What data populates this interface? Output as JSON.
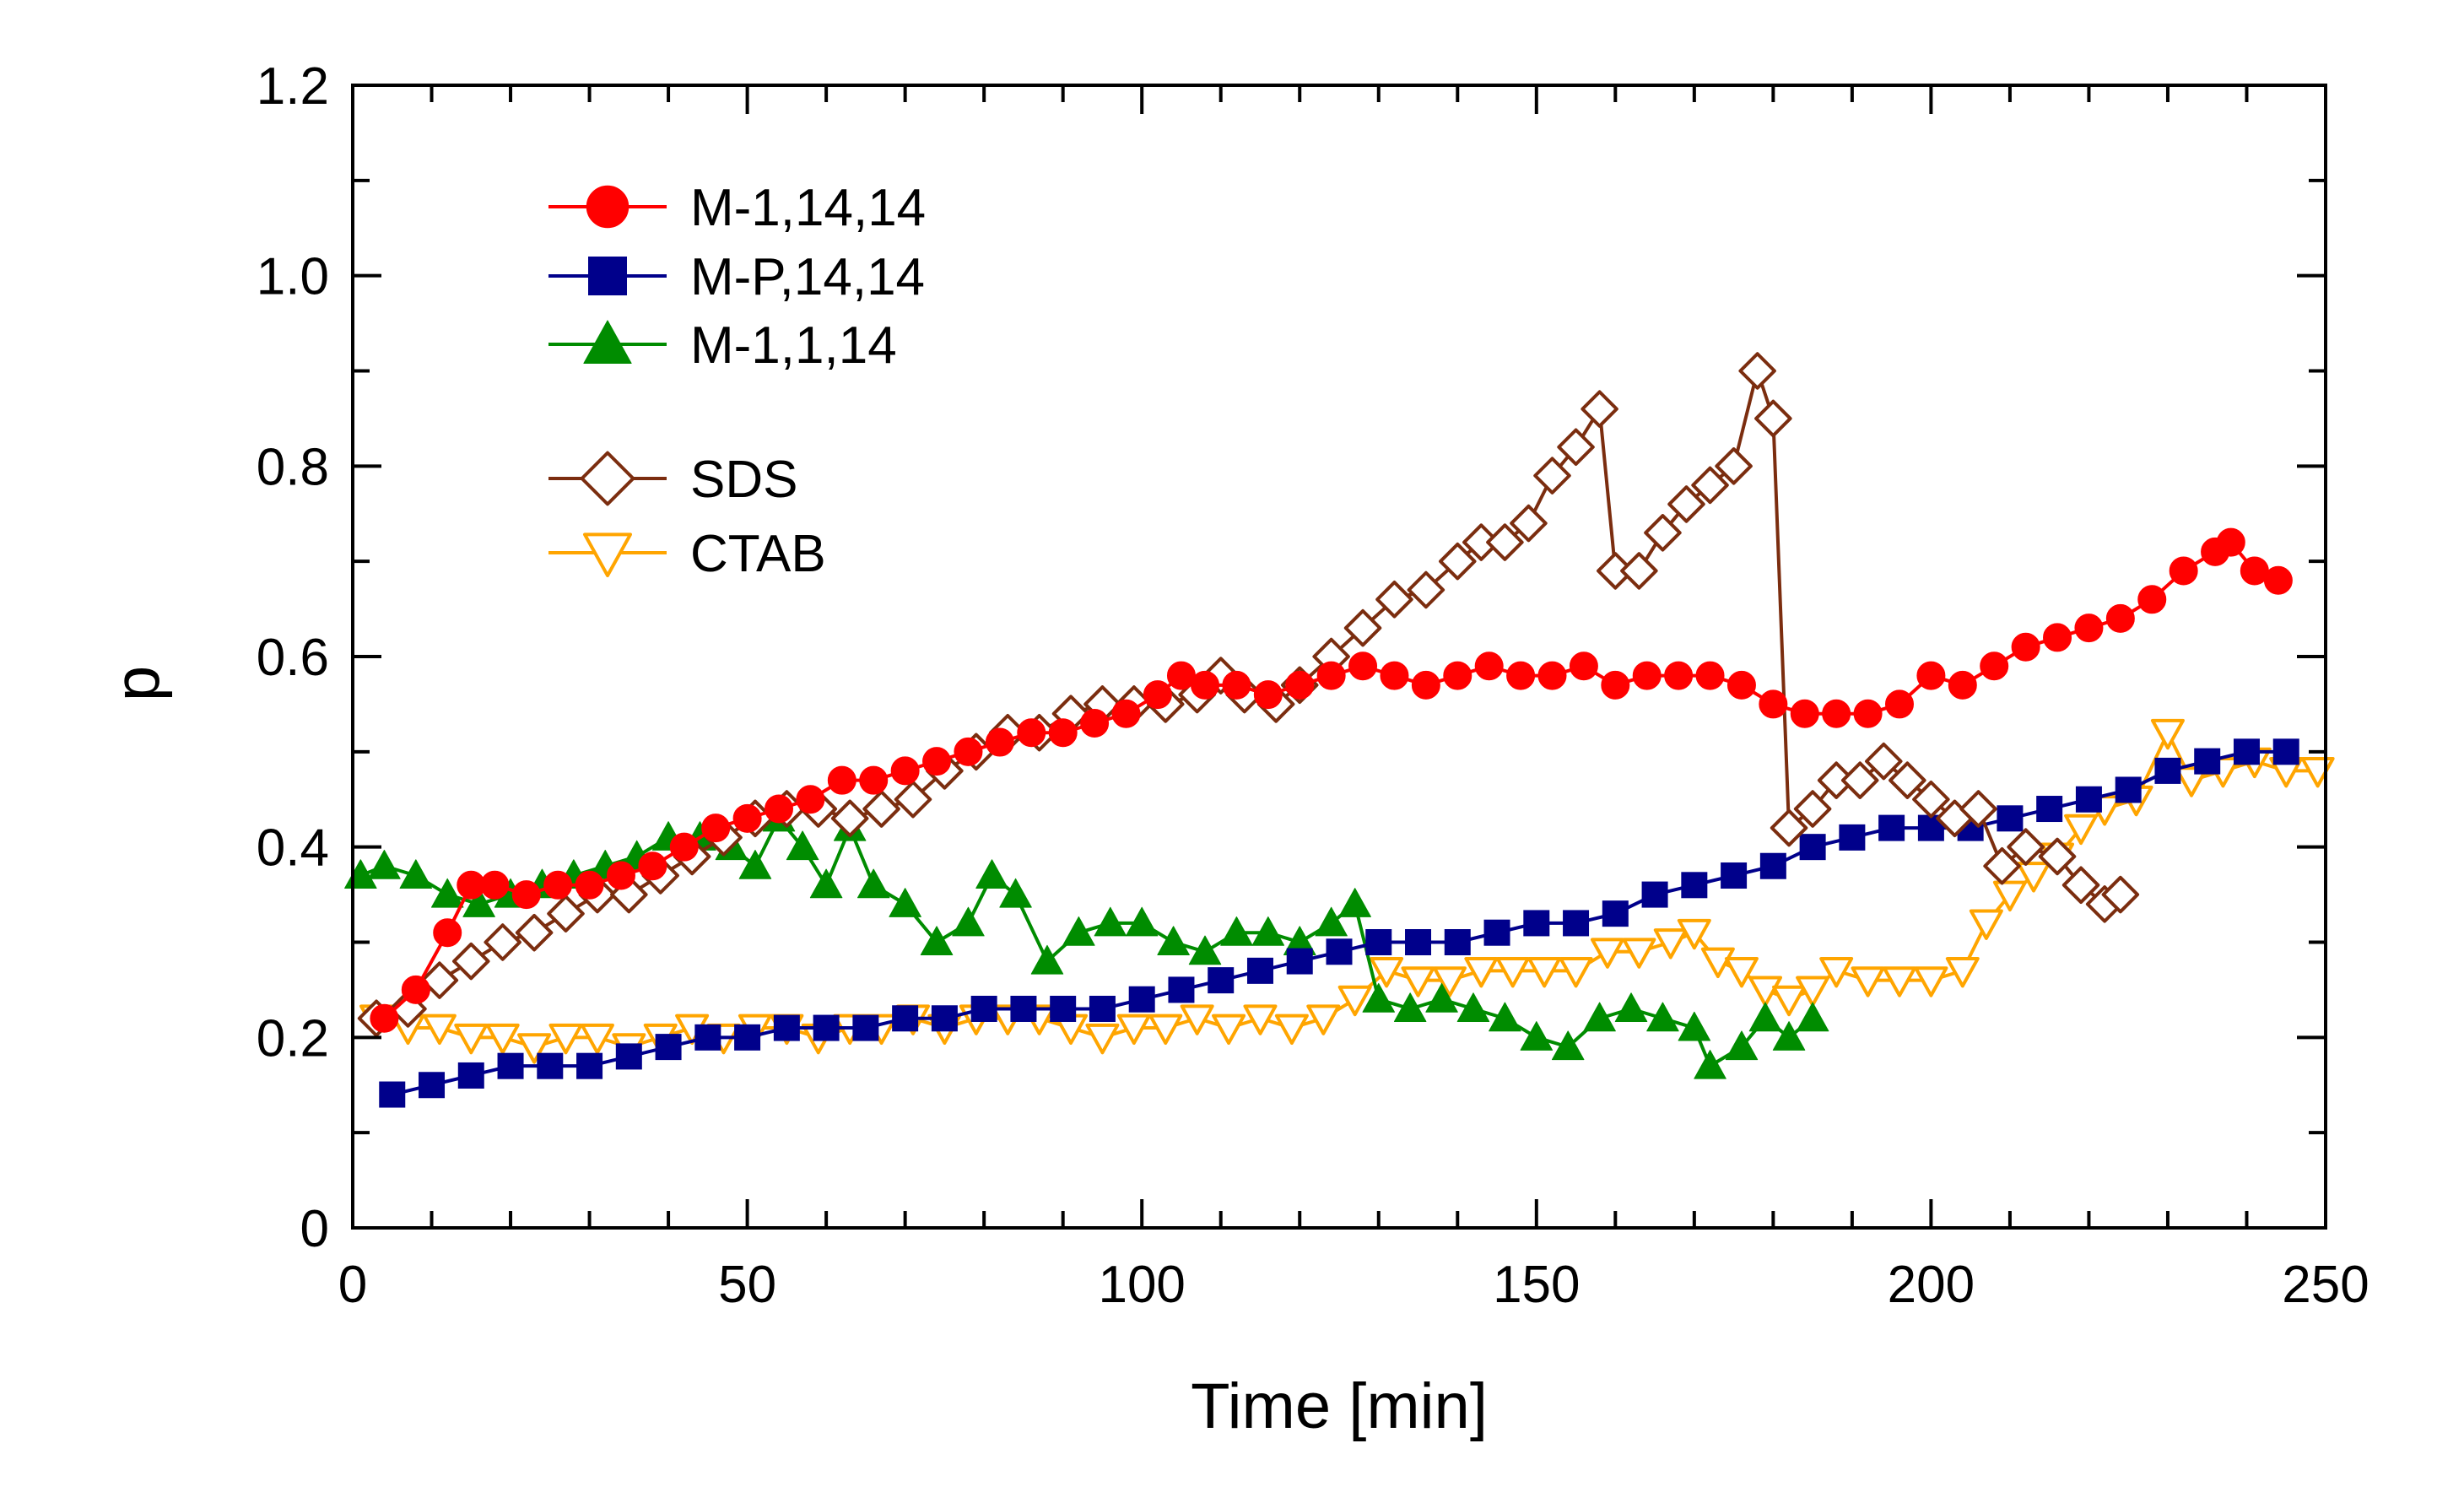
{
  "chart_data": {
    "type": "line",
    "xlabel": "Time [min]",
    "ylabel": "p",
    "xlim": [
      0,
      250
    ],
    "ylim": [
      0,
      1.2
    ],
    "xticks": [
      "0",
      "50",
      "100",
      "150",
      "200",
      "250"
    ],
    "yticks": [
      "0",
      "0.2",
      "0.4",
      "0.6",
      "0.8",
      "1.0",
      "1.2"
    ],
    "grid": false,
    "legend_position": "top-left",
    "series": [
      {
        "name": "M-1,14,14",
        "color": "#ff0000",
        "marker": "circle",
        "filled": true,
        "points": [
          [
            4,
            0.22
          ],
          [
            8,
            0.25
          ],
          [
            12,
            0.31
          ],
          [
            15,
            0.36
          ],
          [
            18,
            0.36
          ],
          [
            22,
            0.35
          ],
          [
            26,
            0.36
          ],
          [
            30,
            0.36
          ],
          [
            34,
            0.37
          ],
          [
            38,
            0.38
          ],
          [
            42,
            0.4
          ],
          [
            46,
            0.42
          ],
          [
            50,
            0.43
          ],
          [
            54,
            0.44
          ],
          [
            58,
            0.45
          ],
          [
            62,
            0.47
          ],
          [
            66,
            0.47
          ],
          [
            70,
            0.48
          ],
          [
            74,
            0.49
          ],
          [
            78,
            0.5
          ],
          [
            82,
            0.51
          ],
          [
            86,
            0.52
          ],
          [
            90,
            0.52
          ],
          [
            94,
            0.53
          ],
          [
            98,
            0.54
          ],
          [
            102,
            0.56
          ],
          [
            105,
            0.58
          ],
          [
            108,
            0.57
          ],
          [
            112,
            0.57
          ],
          [
            116,
            0.56
          ],
          [
            120,
            0.57
          ],
          [
            124,
            0.58
          ],
          [
            128,
            0.59
          ],
          [
            132,
            0.58
          ],
          [
            136,
            0.57
          ],
          [
            140,
            0.58
          ],
          [
            144,
            0.59
          ],
          [
            148,
            0.58
          ],
          [
            152,
            0.58
          ],
          [
            156,
            0.59
          ],
          [
            160,
            0.57
          ],
          [
            164,
            0.58
          ],
          [
            168,
            0.58
          ],
          [
            172,
            0.58
          ],
          [
            176,
            0.57
          ],
          [
            180,
            0.55
          ],
          [
            184,
            0.54
          ],
          [
            188,
            0.54
          ],
          [
            192,
            0.54
          ],
          [
            196,
            0.55
          ],
          [
            200,
            0.58
          ],
          [
            204,
            0.57
          ],
          [
            208,
            0.59
          ],
          [
            212,
            0.61
          ],
          [
            216,
            0.62
          ],
          [
            220,
            0.63
          ],
          [
            224,
            0.64
          ],
          [
            228,
            0.66
          ],
          [
            232,
            0.69
          ],
          [
            236,
            0.71
          ],
          [
            238,
            0.72
          ],
          [
            241,
            0.69
          ],
          [
            244,
            0.68
          ]
        ]
      },
      {
        "name": "M-P,14,14",
        "color": "#00008b",
        "marker": "square",
        "filled": true,
        "points": [
          [
            5,
            0.14
          ],
          [
            10,
            0.15
          ],
          [
            15,
            0.16
          ],
          [
            20,
            0.17
          ],
          [
            25,
            0.17
          ],
          [
            30,
            0.17
          ],
          [
            35,
            0.18
          ],
          [
            40,
            0.19
          ],
          [
            45,
            0.2
          ],
          [
            50,
            0.2
          ],
          [
            55,
            0.21
          ],
          [
            60,
            0.21
          ],
          [
            65,
            0.21
          ],
          [
            70,
            0.22
          ],
          [
            75,
            0.22
          ],
          [
            80,
            0.23
          ],
          [
            85,
            0.23
          ],
          [
            90,
            0.23
          ],
          [
            95,
            0.23
          ],
          [
            100,
            0.24
          ],
          [
            105,
            0.25
          ],
          [
            110,
            0.26
          ],
          [
            115,
            0.27
          ],
          [
            120,
            0.28
          ],
          [
            125,
            0.29
          ],
          [
            130,
            0.3
          ],
          [
            135,
            0.3
          ],
          [
            140,
            0.3
          ],
          [
            145,
            0.31
          ],
          [
            150,
            0.32
          ],
          [
            155,
            0.32
          ],
          [
            160,
            0.33
          ],
          [
            165,
            0.35
          ],
          [
            170,
            0.36
          ],
          [
            175,
            0.37
          ],
          [
            180,
            0.38
          ],
          [
            185,
            0.4
          ],
          [
            190,
            0.41
          ],
          [
            195,
            0.42
          ],
          [
            200,
            0.42
          ],
          [
            205,
            0.42
          ],
          [
            210,
            0.43
          ],
          [
            215,
            0.44
          ],
          [
            220,
            0.45
          ],
          [
            225,
            0.46
          ],
          [
            230,
            0.48
          ],
          [
            235,
            0.49
          ],
          [
            240,
            0.5
          ],
          [
            245,
            0.5
          ]
        ]
      },
      {
        "name": "M-1,1,14",
        "color": "#008c00",
        "marker": "triangle-up",
        "filled": true,
        "points": [
          [
            1,
            0.37
          ],
          [
            4,
            0.38
          ],
          [
            8,
            0.37
          ],
          [
            12,
            0.35
          ],
          [
            16,
            0.34
          ],
          [
            20,
            0.35
          ],
          [
            24,
            0.36
          ],
          [
            28,
            0.37
          ],
          [
            32,
            0.38
          ],
          [
            36,
            0.39
          ],
          [
            40,
            0.41
          ],
          [
            44,
            0.41
          ],
          [
            48,
            0.4
          ],
          [
            51,
            0.38
          ],
          [
            54,
            0.43
          ],
          [
            57,
            0.4
          ],
          [
            60,
            0.36
          ],
          [
            63,
            0.42
          ],
          [
            66,
            0.36
          ],
          [
            70,
            0.34
          ],
          [
            74,
            0.3
          ],
          [
            78,
            0.32
          ],
          [
            81,
            0.37
          ],
          [
            84,
            0.35
          ],
          [
            88,
            0.28
          ],
          [
            92,
            0.31
          ],
          [
            96,
            0.32
          ],
          [
            100,
            0.32
          ],
          [
            104,
            0.3
          ],
          [
            108,
            0.29
          ],
          [
            112,
            0.31
          ],
          [
            116,
            0.31
          ],
          [
            120,
            0.3
          ],
          [
            124,
            0.32
          ],
          [
            127,
            0.34
          ],
          [
            130,
            0.24
          ],
          [
            134,
            0.23
          ],
          [
            138,
            0.24
          ],
          [
            142,
            0.23
          ],
          [
            146,
            0.22
          ],
          [
            150,
            0.2
          ],
          [
            154,
            0.19
          ],
          [
            158,
            0.22
          ],
          [
            162,
            0.23
          ],
          [
            166,
            0.22
          ],
          [
            170,
            0.21
          ],
          [
            172,
            0.17
          ],
          [
            176,
            0.19
          ],
          [
            179,
            0.22
          ],
          [
            182,
            0.2
          ],
          [
            185,
            0.22
          ]
        ]
      },
      {
        "name": "SDS",
        "color": "#7b2d0f",
        "marker": "diamond",
        "filled": false,
        "points": [
          [
            3,
            0.22
          ],
          [
            7,
            0.23
          ],
          [
            11,
            0.26
          ],
          [
            15,
            0.28
          ],
          [
            19,
            0.3
          ],
          [
            23,
            0.31
          ],
          [
            27,
            0.33
          ],
          [
            31,
            0.35
          ],
          [
            35,
            0.35
          ],
          [
            39,
            0.37
          ],
          [
            43,
            0.39
          ],
          [
            47,
            0.41
          ],
          [
            51,
            0.43
          ],
          [
            55,
            0.44
          ],
          [
            59,
            0.44
          ],
          [
            63,
            0.43
          ],
          [
            67,
            0.44
          ],
          [
            71,
            0.45
          ],
          [
            75,
            0.48
          ],
          [
            79,
            0.5
          ],
          [
            83,
            0.52
          ],
          [
            87,
            0.52
          ],
          [
            91,
            0.54
          ],
          [
            95,
            0.55
          ],
          [
            99,
            0.55
          ],
          [
            103,
            0.55
          ],
          [
            107,
            0.56
          ],
          [
            110,
            0.58
          ],
          [
            113,
            0.56
          ],
          [
            117,
            0.55
          ],
          [
            120,
            0.57
          ],
          [
            124,
            0.6
          ],
          [
            128,
            0.63
          ],
          [
            132,
            0.66
          ],
          [
            136,
            0.67
          ],
          [
            140,
            0.7
          ],
          [
            143,
            0.72
          ],
          [
            146,
            0.72
          ],
          [
            149,
            0.74
          ],
          [
            152,
            0.79
          ],
          [
            155,
            0.82
          ],
          [
            158,
            0.86
          ],
          [
            160,
            0.69
          ],
          [
            163,
            0.69
          ],
          [
            166,
            0.73
          ],
          [
            169,
            0.76
          ],
          [
            172,
            0.78
          ],
          [
            175,
            0.8
          ],
          [
            178,
            0.9
          ],
          [
            180,
            0.85
          ],
          [
            182,
            0.42
          ],
          [
            185,
            0.44
          ],
          [
            188,
            0.47
          ],
          [
            191,
            0.47
          ],
          [
            194,
            0.49
          ],
          [
            197,
            0.47
          ],
          [
            200,
            0.45
          ],
          [
            203,
            0.43
          ],
          [
            206,
            0.44
          ],
          [
            209,
            0.38
          ],
          [
            212,
            0.4
          ],
          [
            216,
            0.39
          ],
          [
            219,
            0.36
          ],
          [
            222,
            0.34
          ],
          [
            224,
            0.35
          ]
        ]
      },
      {
        "name": "CTAB",
        "color": "#ffa500",
        "marker": "triangle-down",
        "filled": false,
        "points": [
          [
            3,
            0.22
          ],
          [
            7,
            0.21
          ],
          [
            11,
            0.21
          ],
          [
            15,
            0.2
          ],
          [
            19,
            0.2
          ],
          [
            23,
            0.19
          ],
          [
            27,
            0.2
          ],
          [
            31,
            0.2
          ],
          [
            35,
            0.19
          ],
          [
            39,
            0.2
          ],
          [
            43,
            0.21
          ],
          [
            47,
            0.2
          ],
          [
            51,
            0.21
          ],
          [
            55,
            0.21
          ],
          [
            59,
            0.2
          ],
          [
            63,
            0.21
          ],
          [
            67,
            0.21
          ],
          [
            71,
            0.22
          ],
          [
            75,
            0.21
          ],
          [
            79,
            0.22
          ],
          [
            83,
            0.22
          ],
          [
            87,
            0.22
          ],
          [
            91,
            0.21
          ],
          [
            95,
            0.2
          ],
          [
            99,
            0.21
          ],
          [
            103,
            0.21
          ],
          [
            107,
            0.22
          ],
          [
            111,
            0.21
          ],
          [
            115,
            0.22
          ],
          [
            119,
            0.21
          ],
          [
            123,
            0.22
          ],
          [
            127,
            0.24
          ],
          [
            131,
            0.27
          ],
          [
            135,
            0.26
          ],
          [
            139,
            0.26
          ],
          [
            143,
            0.27
          ],
          [
            147,
            0.27
          ],
          [
            151,
            0.27
          ],
          [
            155,
            0.27
          ],
          [
            159,
            0.29
          ],
          [
            163,
            0.29
          ],
          [
            167,
            0.3
          ],
          [
            170,
            0.31
          ],
          [
            173,
            0.28
          ],
          [
            176,
            0.27
          ],
          [
            179,
            0.25
          ],
          [
            182,
            0.24
          ],
          [
            185,
            0.25
          ],
          [
            188,
            0.27
          ],
          [
            192,
            0.26
          ],
          [
            196,
            0.26
          ],
          [
            200,
            0.26
          ],
          [
            204,
            0.27
          ],
          [
            207,
            0.32
          ],
          [
            210,
            0.35
          ],
          [
            213,
            0.37
          ],
          [
            216,
            0.39
          ],
          [
            219,
            0.42
          ],
          [
            222,
            0.44
          ],
          [
            226,
            0.45
          ],
          [
            230,
            0.52
          ],
          [
            233,
            0.47
          ],
          [
            237,
            0.48
          ],
          [
            241,
            0.49
          ],
          [
            245,
            0.48
          ],
          [
            249,
            0.48
          ]
        ]
      }
    ]
  }
}
